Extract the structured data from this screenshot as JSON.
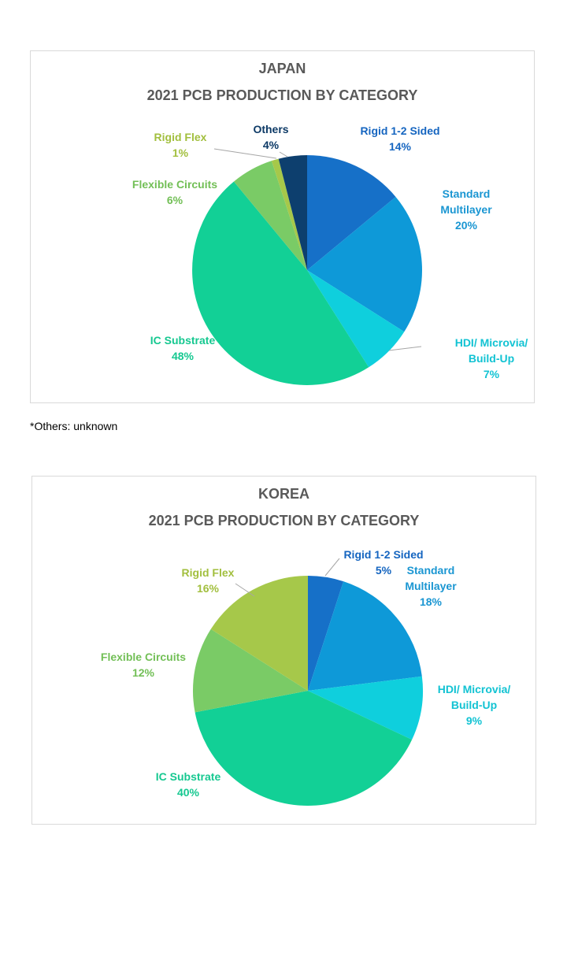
{
  "footnote": "*Others: unknown",
  "chart_data": [
    {
      "type": "pie",
      "title": "JAPAN",
      "subtitle": "2021 PCB PRODUCTION BY CATEGORY",
      "slices": [
        {
          "label": "Rigid 1-2 Sided",
          "value": 14,
          "value_label": "14%",
          "color": "#1670c8",
          "label_color": "#1565c0"
        },
        {
          "label": "Standard Multilayer",
          "value": 20,
          "value_label": "20%",
          "color": "#0e99d8",
          "label_color": "#1a96d2"
        },
        {
          "label": "HDI/ Microvia/ Build-Up",
          "value": 7,
          "value_label": "7%",
          "color": "#0fcfdd",
          "label_color": "#12c3d3"
        },
        {
          "label": "IC Substrate",
          "value": 48,
          "value_label": "48%",
          "color": "#12d096",
          "label_color": "#15c890"
        },
        {
          "label": "Flexible Circuits",
          "value": 6,
          "value_label": "6%",
          "color": "#7acb66",
          "label_color": "#72bf56"
        },
        {
          "label": "Rigid Flex",
          "value": 1,
          "value_label": "1%",
          "color": "#a6c84a",
          "label_color": "#a2bf3e"
        },
        {
          "label": "Others",
          "value": 4,
          "value_label": "4%",
          "color": "#0d3f6e",
          "label_color": "#0d3a66"
        }
      ]
    },
    {
      "type": "pie",
      "title": "KOREA",
      "subtitle": "2021 PCB PRODUCTION BY CATEGORY",
      "slices": [
        {
          "label": "Rigid 1-2 Sided",
          "value": 5,
          "value_label": "5%",
          "color": "#1670c8",
          "label_color": "#1565c0"
        },
        {
          "label": "Standard Multilayer",
          "value": 18,
          "value_label": "18%",
          "color": "#0e99d8",
          "label_color": "#1a96d2"
        },
        {
          "label": "HDI/ Microvia/ Build-Up",
          "value": 9,
          "value_label": "9%",
          "color": "#0fcfdd",
          "label_color": "#12c3d3"
        },
        {
          "label": "IC Substrate",
          "value": 40,
          "value_label": "40%",
          "color": "#12d096",
          "label_color": "#15c890"
        },
        {
          "label": "Flexible Circuits",
          "value": 12,
          "value_label": "12%",
          "color": "#7acb66",
          "label_color": "#72bf56"
        },
        {
          "label": "Rigid Flex",
          "value": 16,
          "value_label": "16%",
          "color": "#a6c84a",
          "label_color": "#a2bf3e"
        }
      ]
    }
  ]
}
